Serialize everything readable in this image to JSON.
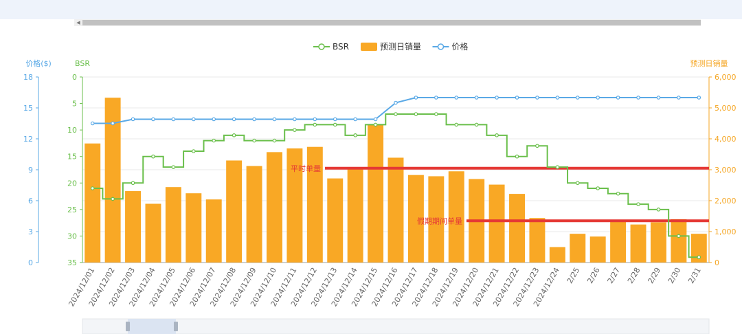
{
  "chart_data": {
    "type": "bar",
    "title": "",
    "legend": {
      "position": "top-center",
      "items": [
        "BSR",
        "预测日销量",
        "价格"
      ]
    },
    "axes": {
      "price": {
        "title": "价格($)",
        "min": 0,
        "max": 18,
        "ticks": [
          "0",
          "3",
          "6",
          "9",
          "12",
          "15",
          "18"
        ],
        "color": "#5aa9e6"
      },
      "bsr": {
        "title": "BSR",
        "min": 0,
        "max": 35,
        "inverse": true,
        "ticks": [
          "0",
          "5",
          "10",
          "15",
          "20",
          "25",
          "30",
          "35"
        ],
        "color": "#6abf4b"
      },
      "sales": {
        "title": "预测日销量",
        "min": 0,
        "max": 6000,
        "ticks": [
          "0",
          "1,000",
          "2,000",
          "3,000",
          "4,000",
          "5,000",
          "6,000"
        ],
        "color": "#f5a623"
      }
    },
    "categories": [
      "2024/12/01",
      "2024/12/02",
      "2024/12/03",
      "2024/12/04",
      "2024/12/05",
      "2024/12/06",
      "2024/12/07",
      "2024/12/08",
      "2024/12/09",
      "2024/12/10",
      "2024/12/11",
      "2024/12/12",
      "2024/12/13",
      "2024/12/14",
      "2024/12/15",
      "2024/12/16",
      "2024/12/17",
      "2024/12/18",
      "2024/12/19",
      "2024/12/20",
      "2024/12/21",
      "2024/12/22",
      "2024/12/23",
      "2024/12/24",
      "2/25",
      "2/26",
      "2/27",
      "2/28",
      "2/29",
      "2/30",
      "2/31"
    ],
    "series": [
      {
        "name": "BSR",
        "type": "step-line",
        "axis": "bsr",
        "color": "#6abf4b",
        "values": [
          21,
          23,
          20,
          15,
          17,
          14,
          12,
          11,
          12,
          12,
          10,
          9,
          9,
          11,
          9,
          7,
          7,
          7,
          9,
          9,
          11,
          15,
          13,
          17,
          20,
          21,
          22,
          24,
          25,
          30,
          34
        ]
      },
      {
        "name": "预测日销量",
        "type": "bar",
        "axis": "sales",
        "color": "#f9a825",
        "values": [
          3850,
          5330,
          2310,
          1900,
          2440,
          2240,
          2040,
          3300,
          3120,
          3570,
          3690,
          3740,
          2720,
          3060,
          4480,
          3390,
          2830,
          2790,
          2950,
          2700,
          2520,
          2220,
          1440,
          500,
          930,
          840,
          1350,
          1230,
          1300,
          1400,
          930
        ]
      },
      {
        "name": "价格",
        "type": "line",
        "axis": "price",
        "color": "#5aa9e6",
        "values": [
          13.5,
          13.5,
          13.9,
          13.9,
          13.9,
          13.9,
          13.9,
          13.9,
          13.9,
          13.9,
          13.9,
          13.9,
          13.9,
          13.9,
          13.9,
          15.5,
          16,
          16,
          16,
          16,
          16,
          16,
          16,
          16,
          16,
          16,
          16,
          16,
          16,
          16,
          16
        ]
      }
    ],
    "annotations": [
      {
        "label": "平时单量",
        "value": 3050,
        "from_index": 12,
        "color": "#e53935"
      },
      {
        "label": "假期期间单量",
        "value": 1350,
        "from_index": 19,
        "color": "#e53935"
      }
    ]
  }
}
